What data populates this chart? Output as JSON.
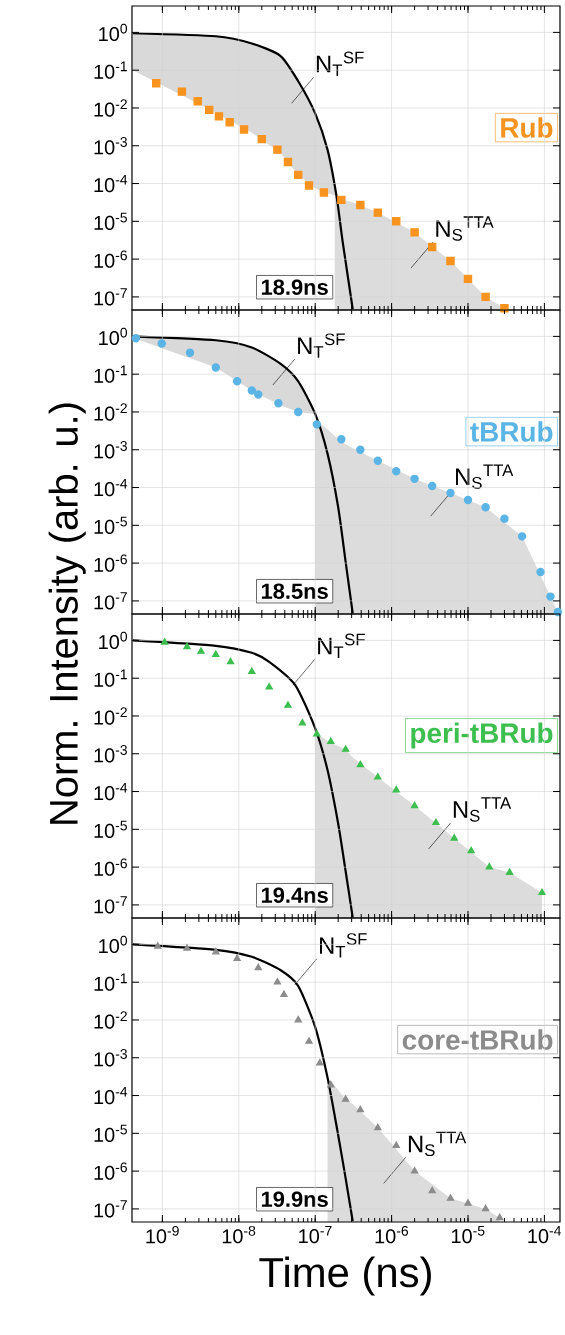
{
  "chart_data": [
    {
      "type": "scatter",
      "log": "xy",
      "grid": true,
      "tick_labels": "y",
      "ylabel": "Norm. Intensity (arb. u.)",
      "xlim": [
        4e-10,
        0.00016
      ],
      "ylim": [
        4.5e-08,
        5
      ],
      "xticks": [
        1e-09,
        1e-08,
        1e-07,
        1e-06,
        1e-05,
        0.0001
      ],
      "yticks": [
        {
          "value": 1,
          "label": "10$^{0}$"
        },
        {
          "value": 0.1,
          "label": "10$^{-1}$"
        },
        {
          "value": 0.01,
          "label": "10$^{-2}$"
        },
        {
          "value": 0.001,
          "label": "10$^{-3}$"
        },
        {
          "value": 0.0001,
          "label": "10$^{-4}$"
        },
        {
          "value": 1e-05,
          "label": "10$^{-5}$"
        },
        {
          "value": 1e-06,
          "label": "10$^{-6}$"
        },
        {
          "value": 1e-07,
          "label": "10$^{-7}$"
        }
      ],
      "series": [
        {
          "type": "area",
          "color": "#dcdcdc",
          "x": [
            1.8e-07,
            2.3e-07,
            3.1e-07,
            6.6e-07,
            2e-06,
            5.9e-06,
            1.7e-05,
            3e-05
          ],
          "values": [
            5e-05,
            3.7e-05,
            3.2e-05,
            1.7e-05,
            5.1e-06,
            8.9e-07,
            1e-07,
            5e-08
          ]
        },
        {
          "name": "Rub",
          "color": "#f7931e",
          "marker": "square",
          "x": [
            8.3e-10,
            1.8e-09,
            2.9e-09,
            4.1e-09,
            5.5e-09,
            7.6e-09,
            1.17e-08,
            2e-08,
            3.2e-08,
            4.4e-08,
            6e-08,
            8.3e-08,
            1.3e-07,
            2.2e-07,
            3.9e-07,
            6.6e-07,
            1.15e-06,
            2e-06,
            3.4e-06,
            5.9e-06,
            1e-05,
            1.7e-05,
            3e-05
          ],
          "values": [
            0.045,
            0.027,
            0.015,
            0.0089,
            0.006,
            0.0042,
            0.0027,
            0.0015,
            0.00079,
            0.00037,
            0.00017,
            8.9e-05,
            5.8e-05,
            3.7e-05,
            2.7e-05,
            1.7e-05,
            1e-05,
            5.1e-06,
            2.1e-06,
            8.9e-07,
            3e-07,
            1e-07,
            5e-08
          ]
        },
        {
          "type": "line",
          "color": "#000000",
          "marker": "none",
          "x": [
            4.1e-10,
            5e-09,
            1.48e-08,
            3.5e-08,
            6e-08,
            1e-07,
            1.45e-07,
            1.9e-07,
            2.3e-07,
            3.1e-07
          ],
          "values": [
            0.95,
            0.79,
            0.51,
            0.24,
            0.051,
            0.0072,
            0.00079,
            4.7e-05,
            2.7e-06,
            4.7e-08
          ],
          "upper": [
            0.95,
            0.79,
            0.51,
            0.24,
            0.051,
            0.0072,
            0.00079,
            4.7e-05,
            null,
            null
          ],
          "lower": [
            0.1,
            0.0075,
            0.0022,
            0.00065,
            0.00017,
            7.5e-05,
            5.5e-05,
            4.7e-05,
            null,
            null
          ]
        }
      ],
      "annotations": [
        "N$_{T}$$^{SF}$",
        "N$_{S}$$^{TTA}$",
        "18.9ns"
      ]
    },
    {
      "type": "scatter",
      "log": "xy",
      "grid": true,
      "tick_labels": "y",
      "xlim": [
        4e-10,
        0.00016
      ],
      "ylim": [
        4.5e-08,
        5
      ],
      "xticks": [
        1e-09,
        1e-08,
        1e-07,
        1e-06,
        1e-05,
        0.0001
      ],
      "yticks": [
        {
          "value": 1,
          "label": "10$^{0}$"
        },
        {
          "value": 0.1,
          "label": "10$^{-1}$"
        },
        {
          "value": 0.01,
          "label": "10$^{-2}$"
        },
        {
          "value": 0.001,
          "label": "10$^{-3}$"
        },
        {
          "value": 0.0001,
          "label": "10$^{-4}$"
        },
        {
          "value": 1e-05,
          "label": "10$^{-5}$"
        },
        {
          "value": 1e-06,
          "label": "10$^{-6}$"
        },
        {
          "value": 1e-07,
          "label": "10$^{-7}$"
        }
      ],
      "series": [
        {
          "type": "area",
          "color": "#dcdcdc",
          "x": [
            1e-07,
            1.45e-07,
            2e-07,
            2.5e-07,
            3.1e-07,
            6.6e-07,
            2e-06,
            5.9e-06,
            1.7e-05,
            5.1e-05,
            0.00012,
            0.00015
          ],
          "values": [
            0.006,
            0.0035,
            0.0019,
            0.0014,
            0.0011,
            0.00051,
            0.00017,
            7.2e-05,
            3e-05,
            5.1e-06,
            1.3e-07,
            5.1e-08
          ]
        },
        {
          "name": "tBRub",
          "color": "#5ab4e5",
          "marker": "circle",
          "x": [
            4.5e-10,
            9.8e-10,
            2.3e-09,
            5e-09,
            9.5e-09,
            1.48e-08,
            1.8e-08,
            3.3e-08,
            6e-08,
            1.05e-07,
            2.2e-07,
            3.9e-07,
            6.6e-07,
            1.15e-06,
            2e-06,
            3.4e-06,
            5.9e-06,
            1e-05,
            1.7e-05,
            3e-05,
            5.1e-05,
            8.9e-05,
            0.00012,
            0.00015
          ],
          "values": [
            0.89,
            0.65,
            0.37,
            0.15,
            0.065,
            0.037,
            0.029,
            0.017,
            0.01,
            0.0047,
            0.0019,
            0.001,
            0.00051,
            0.00027,
            0.00017,
            0.00011,
            7.2e-05,
            4.7e-05,
            3e-05,
            1.5e-05,
            5.1e-06,
            5.8e-07,
            1.3e-07,
            5.1e-08
          ]
        },
        {
          "type": "line",
          "color": "#000000",
          "marker": "none",
          "x": [
            4.1e-10,
            5e-09,
            1.48e-08,
            3.5e-08,
            6e-08,
            1e-07,
            1.45e-07,
            2e-07,
            2.5e-07,
            3.1e-07
          ],
          "values": [
            1.0,
            0.79,
            0.51,
            0.19,
            0.065,
            0.0089,
            0.00079,
            3e-05,
            1.1e-06,
            4.7e-08
          ],
          "upper": [
            1.0,
            0.79,
            0.51,
            0.19,
            0.065,
            0.0089,
            null,
            null,
            null,
            null
          ],
          "lower": [
            0.92,
            0.15,
            0.037,
            0.015,
            0.01,
            0.0089,
            null,
            null,
            null,
            null
          ]
        }
      ],
      "annotations": [
        "N$_{T}$$^{SF}$",
        "N$_{S}$$^{TTA}$",
        "18.5ns"
      ]
    },
    {
      "type": "scatter",
      "log": "xy",
      "grid": true,
      "tick_labels": "y",
      "xlim": [
        4e-10,
        0.00016
      ],
      "ylim": [
        4.5e-08,
        5
      ],
      "xticks": [
        1e-09,
        1e-08,
        1e-07,
        1e-06,
        1e-05,
        0.0001
      ],
      "yticks": [
        {
          "value": 1,
          "label": "10$^{0}$"
        },
        {
          "value": 0.1,
          "label": "10$^{-1}$"
        },
        {
          "value": 0.01,
          "label": "10$^{-2}$"
        },
        {
          "value": 0.001,
          "label": "10$^{-3}$"
        },
        {
          "value": 0.0001,
          "label": "10$^{-4}$"
        },
        {
          "value": 1e-05,
          "label": "10$^{-5}$"
        },
        {
          "value": 1e-06,
          "label": "10$^{-6}$"
        },
        {
          "value": 1e-07,
          "label": "10$^{-7}$"
        }
      ],
      "series": [
        {
          "type": "area",
          "color": "#dcdcdc",
          "x": [
            1e-07,
            1.45e-07,
            2e-07,
            2.5e-07,
            3.1e-07,
            6.6e-07,
            2e-06,
            6.6e-06,
            1.9e-05,
            3.5e-05,
            9.3e-05
          ],
          "values": [
            0.0035,
            0.0022,
            0.0016,
            0.0013,
            0.0008,
            0.00024,
            4.2e-05,
            5.8e-06,
            1e-06,
            7.2e-07,
            2.1e-07
          ]
        },
        {
          "name": "peri-tBRub",
          "color": "#3dbf4f",
          "marker": "triangle",
          "x": [
            1.07e-09,
            2.1e-09,
            3.2e-09,
            5e-09,
            7.8e-09,
            1.48e-08,
            2.5e-08,
            4.4e-08,
            6.8e-08,
            1.05e-07,
            1.6e-07,
            2.5e-07,
            3.9e-07,
            6.6e-07,
            1.15e-06,
            2e-06,
            3.8e-06,
            6.6e-06,
            1.1e-05,
            1.9e-05,
            3.5e-05,
            9.3e-05
          ],
          "values": [
            0.89,
            0.68,
            0.51,
            0.42,
            0.27,
            0.15,
            0.058,
            0.019,
            0.0065,
            0.0033,
            0.0021,
            0.0013,
            0.00051,
            0.00024,
            0.00011,
            4.2e-05,
            1.5e-05,
            5.8e-06,
            2.7e-06,
            1e-06,
            7.2e-07,
            2.1e-07
          ]
        },
        {
          "type": "line",
          "color": "#000000",
          "marker": "none",
          "x": [
            4.1e-10,
            5e-09,
            1.48e-08,
            2.5e-08,
            5.5e-08,
            1e-07,
            1.45e-07,
            2e-07,
            2.5e-07,
            3.1e-07
          ],
          "values": [
            1.0,
            0.72,
            0.47,
            0.27,
            0.065,
            0.0047,
            0.00037,
            1.4e-05,
            7.9e-07,
            4.6e-08
          ]
        }
      ],
      "annotations": [
        {
          "text": "N$_{T}$$^{SF}$",
          "x": 5.1e-08,
          "y": 0.065
        },
        "N$_{S}$$^{TTA}$",
        "19.4ns"
      ]
    },
    {
      "type": "scatter",
      "log": "xy",
      "grid": true,
      "xlabel": "Time (ns)",
      "xlim": [
        4e-10,
        0.00016
      ],
      "ylim": [
        4.5e-08,
        5
      ],
      "xticks": [
        {
          "value": 1e-09,
          "label": "10$^{-9}$"
        },
        {
          "value": 1e-08,
          "label": "10$^{-8}$"
        },
        {
          "value": 1e-07,
          "label": "10$^{-7}$"
        },
        {
          "value": 1e-06,
          "label": "10$^{-6}$"
        },
        {
          "value": 1e-05,
          "label": "10$^{-5}$"
        },
        {
          "value": 0.0001,
          "label": "10$^{-4}$"
        }
      ],
      "yticks": [
        {
          "value": 1,
          "label": "10$^{0}$"
        },
        {
          "value": 0.1,
          "label": "10$^{-1}$"
        },
        {
          "value": 0.01,
          "label": "10$^{-2}$"
        },
        {
          "value": 0.001,
          "label": "10$^{-3}$"
        },
        {
          "value": 0.0001,
          "label": "10$^{-4}$"
        },
        {
          "value": 1e-05,
          "label": "10$^{-5}$"
        },
        {
          "value": 1e-06,
          "label": "10$^{-6}$"
        },
        {
          "value": 1e-07,
          "label": "10$^{-7}$"
        }
      ],
      "series": [
        {
          "type": "area",
          "color": "#dcdcdc",
          "x": [
            1.45e-07,
            2e-07,
            2.5e-07,
            3.1e-07,
            6.6e-07,
            2e-06,
            5.9e-06,
            1.7e-05,
            2.6e-05
          ],
          "values": [
            0.0003,
            0.00014,
            7.9e-05,
            6e-05,
            1.4e-05,
            1e-06,
            1.9e-07,
            1e-07,
            5.8e-08
          ]
        },
        {
          "name": "core-tBRub",
          "color": "#8c8c8c",
          "marker": "triangle",
          "x": [
            8.7e-10,
            2.1e-09,
            5e-09,
            9.5e-09,
            1.8e-08,
            3.2e-08,
            3.9e-08,
            6e-08,
            8.3e-08,
            1.15e-07,
            1.6e-07,
            2.5e-07,
            3.9e-07,
            6.6e-07,
            1.15e-06,
            2e-06,
            3.4e-06,
            5.9e-06,
            1e-05,
            1.7e-05,
            2.6e-05
          ],
          "values": [
            0.89,
            0.79,
            0.63,
            0.42,
            0.24,
            0.1,
            0.047,
            0.01,
            0.0027,
            0.00072,
            0.00019,
            7.9e-05,
            4.2e-05,
            1.4e-05,
            4.7e-06,
            1e-06,
            3e-07,
            1.9e-07,
            1.4e-07,
            1e-07,
            5.8e-08
          ]
        },
        {
          "type": "line",
          "color": "#000000",
          "marker": "none",
          "x": [
            4.1e-10,
            5e-09,
            1.48e-08,
            3.5e-08,
            6e-08,
            1e-07,
            1.45e-07,
            2e-07,
            2.5e-07,
            3.1e-07
          ],
          "values": [
            1.0,
            0.72,
            0.47,
            0.21,
            0.079,
            0.0065,
            0.0003,
            8.9e-06,
            6.5e-07,
            4.7e-08
          ]
        }
      ],
      "annotations": [
        {
          "text": "N$_{T}$$^{SF}$",
          "x": 5.4e-08,
          "y": 0.085
        },
        "N$_{S}$$^{TTA}$",
        "19.9ns"
      ]
    }
  ]
}
